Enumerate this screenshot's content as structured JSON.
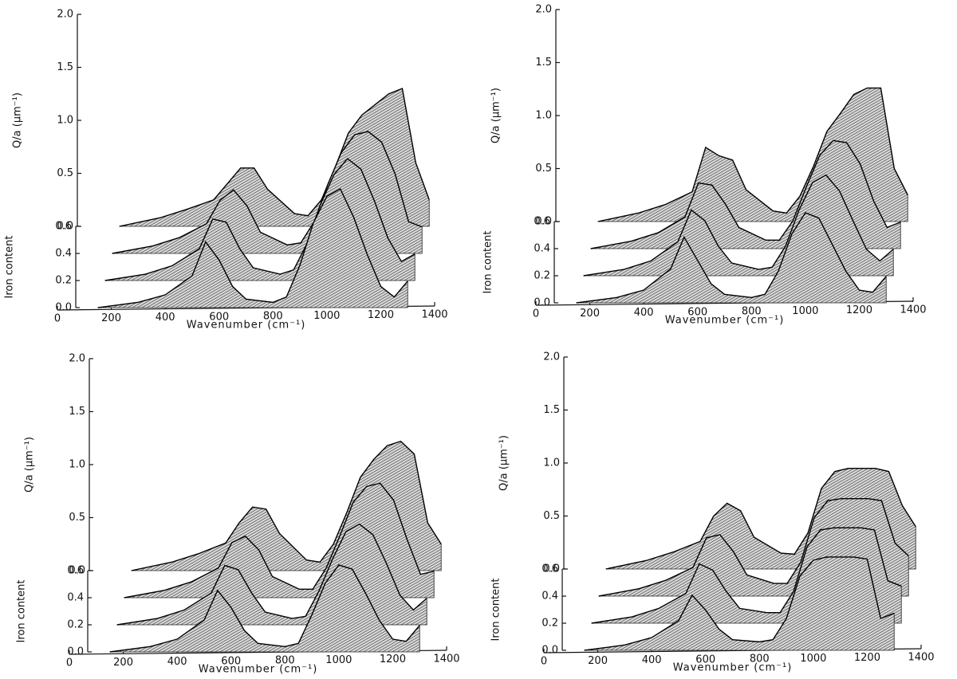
{
  "chart_data": [
    {
      "type": "surface",
      "xlabel": "Wavenumber (cm⁻¹)",
      "ylabel": "Q/a (μm⁻¹)",
      "zlabel": "Iron content",
      "x": [
        150,
        300,
        400,
        500,
        550,
        600,
        650,
        700,
        800,
        850,
        900,
        950,
        1000,
        1050,
        1100,
        1150,
        1200,
        1250,
        1300
      ],
      "series": [
        {
          "z": 0.0,
          "values": [
            0.0,
            0.05,
            0.12,
            0.3,
            0.62,
            0.45,
            0.2,
            0.08,
            0.05,
            0.1,
            0.4,
            0.8,
            1.05,
            1.12,
            0.85,
            0.5,
            0.2,
            0.1,
            0.25
          ]
        },
        {
          "z": 0.2,
          "values": [
            0.0,
            0.06,
            0.14,
            0.3,
            0.58,
            0.55,
            0.3,
            0.12,
            0.06,
            0.1,
            0.35,
            0.72,
            1.0,
            1.15,
            1.05,
            0.75,
            0.4,
            0.18,
            0.25
          ]
        },
        {
          "z": 0.4,
          "values": [
            0.0,
            0.07,
            0.15,
            0.28,
            0.5,
            0.6,
            0.45,
            0.2,
            0.08,
            0.1,
            0.3,
            0.65,
            0.95,
            1.12,
            1.15,
            1.05,
            0.75,
            0.3,
            0.25
          ]
        },
        {
          "z": 0.6,
          "values": [
            0.0,
            0.08,
            0.16,
            0.25,
            0.4,
            0.55,
            0.55,
            0.35,
            0.12,
            0.1,
            0.25,
            0.55,
            0.88,
            1.05,
            1.15,
            1.25,
            1.3,
            0.6,
            0.25
          ]
        }
      ],
      "xlim": [
        0,
        1400
      ],
      "xticks": [
        0,
        200,
        400,
        600,
        800,
        1000,
        1200,
        1400
      ],
      "ylim": [
        0,
        2
      ],
      "yticks": [
        {
          "value": 0,
          "label": "0.0"
        },
        {
          "value": 0.5,
          "label": "0.5"
        },
        {
          "value": 1,
          "label": "1.0"
        },
        {
          "value": 1.5,
          "label": "1.5"
        },
        {
          "value": 2,
          "label": "2.0"
        }
      ],
      "zlim": [
        0,
        0.6
      ],
      "zticks": [
        {
          "value": 0,
          "label": "0.0"
        },
        {
          "value": 0.2,
          "label": "0.2"
        },
        {
          "value": 0.4,
          "label": "0.4"
        },
        {
          "value": 0.6,
          "label": "0.6"
        }
      ]
    },
    {
      "type": "surface",
      "xlabel": "Wavenumber (cm⁻¹)",
      "ylabel": "Q/a (μm⁻¹)",
      "zlabel": "Iron content",
      "x": [
        150,
        300,
        400,
        500,
        550,
        600,
        650,
        700,
        800,
        850,
        900,
        950,
        1000,
        1050,
        1100,
        1150,
        1200,
        1250,
        1300
      ],
      "series": [
        {
          "z": 0.0,
          "values": [
            0.0,
            0.05,
            0.12,
            0.32,
            0.62,
            0.4,
            0.18,
            0.08,
            0.05,
            0.08,
            0.3,
            0.65,
            0.85,
            0.8,
            0.55,
            0.3,
            0.12,
            0.1,
            0.25
          ]
        },
        {
          "z": 0.2,
          "values": [
            0.0,
            0.06,
            0.14,
            0.32,
            0.62,
            0.52,
            0.28,
            0.12,
            0.06,
            0.08,
            0.28,
            0.62,
            0.88,
            0.95,
            0.8,
            0.52,
            0.25,
            0.14,
            0.25
          ]
        },
        {
          "z": 0.4,
          "values": [
            0.0,
            0.07,
            0.15,
            0.3,
            0.62,
            0.6,
            0.42,
            0.2,
            0.08,
            0.08,
            0.26,
            0.58,
            0.88,
            1.02,
            1.0,
            0.8,
            0.45,
            0.2,
            0.25
          ]
        },
        {
          "z": 0.6,
          "values": [
            0.0,
            0.08,
            0.16,
            0.28,
            0.7,
            0.62,
            0.58,
            0.3,
            0.1,
            0.08,
            0.24,
            0.52,
            0.85,
            1.02,
            1.2,
            1.26,
            1.26,
            0.5,
            0.25
          ]
        }
      ],
      "xlim": [
        0,
        1400
      ],
      "xticks": [
        0,
        200,
        400,
        600,
        800,
        1000,
        1200,
        1400
      ],
      "ylim": [
        0,
        2
      ],
      "yticks": [
        {
          "value": 0,
          "label": "0.0"
        },
        {
          "value": 0.5,
          "label": "0.5"
        },
        {
          "value": 1,
          "label": "1.0"
        },
        {
          "value": 1.5,
          "label": "1.5"
        },
        {
          "value": 2,
          "label": "2.0"
        }
      ],
      "zlim": [
        0,
        0.6
      ],
      "zticks": [
        {
          "value": 0,
          "label": "0.0"
        },
        {
          "value": 0.2,
          "label": "0.2"
        },
        {
          "value": 0.4,
          "label": "0.4"
        },
        {
          "value": 0.6,
          "label": "0.6"
        }
      ]
    },
    {
      "type": "surface",
      "xlabel": "Wavenumber (cm⁻¹)",
      "ylabel": "Q/a (μm⁻¹)",
      "zlabel": "Iron content",
      "x": [
        150,
        300,
        400,
        500,
        550,
        600,
        650,
        700,
        800,
        850,
        900,
        950,
        1000,
        1050,
        1100,
        1150,
        1200,
        1250,
        1300
      ],
      "series": [
        {
          "z": 0.0,
          "values": [
            0.0,
            0.05,
            0.12,
            0.3,
            0.58,
            0.42,
            0.2,
            0.08,
            0.05,
            0.08,
            0.35,
            0.65,
            0.82,
            0.78,
            0.55,
            0.3,
            0.12,
            0.1,
            0.25
          ]
        },
        {
          "z": 0.2,
          "values": [
            0.0,
            0.06,
            0.14,
            0.3,
            0.56,
            0.52,
            0.3,
            0.12,
            0.06,
            0.08,
            0.32,
            0.62,
            0.88,
            0.95,
            0.85,
            0.58,
            0.28,
            0.14,
            0.25
          ]
        },
        {
          "z": 0.4,
          "values": [
            0.0,
            0.07,
            0.15,
            0.28,
            0.52,
            0.58,
            0.45,
            0.2,
            0.08,
            0.08,
            0.28,
            0.58,
            0.9,
            1.05,
            1.08,
            0.92,
            0.55,
            0.22,
            0.25
          ]
        },
        {
          "z": 0.6,
          "values": [
            0.0,
            0.08,
            0.16,
            0.26,
            0.45,
            0.6,
            0.58,
            0.35,
            0.1,
            0.08,
            0.25,
            0.55,
            0.88,
            1.05,
            1.18,
            1.22,
            1.1,
            0.45,
            0.25
          ]
        }
      ],
      "xlim": [
        0,
        1400
      ],
      "xticks": [
        0,
        200,
        400,
        600,
        800,
        1000,
        1200,
        1400
      ],
      "ylim": [
        0,
        2
      ],
      "yticks": [
        {
          "value": 0,
          "label": "0.0"
        },
        {
          "value": 0.5,
          "label": "0.5"
        },
        {
          "value": 1,
          "label": "1.0"
        },
        {
          "value": 1.5,
          "label": "1.5"
        },
        {
          "value": 2,
          "label": "2.0"
        }
      ],
      "zlim": [
        0,
        0.6
      ],
      "zticks": [
        {
          "value": 0,
          "label": "0.0"
        },
        {
          "value": 0.2,
          "label": "0.2"
        },
        {
          "value": 0.4,
          "label": "0.4"
        },
        {
          "value": 0.6,
          "label": "0.6"
        }
      ]
    },
    {
      "type": "surface",
      "xlabel": "Wavenumber (cm⁻¹)",
      "ylabel": "Q/a (μm⁻¹)",
      "zlabel": "Iron content",
      "x": [
        150,
        300,
        400,
        500,
        550,
        600,
        650,
        700,
        800,
        850,
        900,
        950,
        1000,
        1050,
        1100,
        1150,
        1200,
        1250,
        1300
      ],
      "series": [
        {
          "z": 0.0,
          "values": [
            0.0,
            0.05,
            0.12,
            0.28,
            0.52,
            0.38,
            0.2,
            0.1,
            0.08,
            0.1,
            0.3,
            0.7,
            0.85,
            0.88,
            0.88,
            0.88,
            0.86,
            0.3,
            0.35
          ]
        },
        {
          "z": 0.2,
          "values": [
            0.0,
            0.06,
            0.14,
            0.28,
            0.56,
            0.5,
            0.3,
            0.14,
            0.1,
            0.1,
            0.3,
            0.72,
            0.88,
            0.9,
            0.9,
            0.9,
            0.88,
            0.4,
            0.35
          ]
        },
        {
          "z": 0.4,
          "values": [
            0.0,
            0.07,
            0.15,
            0.27,
            0.55,
            0.58,
            0.42,
            0.2,
            0.12,
            0.12,
            0.32,
            0.74,
            0.9,
            0.92,
            0.92,
            0.92,
            0.9,
            0.5,
            0.38
          ]
        },
        {
          "z": 0.6,
          "values": [
            0.0,
            0.08,
            0.16,
            0.26,
            0.5,
            0.62,
            0.55,
            0.3,
            0.15,
            0.14,
            0.34,
            0.76,
            0.92,
            0.95,
            0.95,
            0.95,
            0.92,
            0.6,
            0.4
          ]
        }
      ],
      "xlim": [
        0,
        1400
      ],
      "xticks": [
        0,
        200,
        400,
        600,
        800,
        1000,
        1200,
        1400
      ],
      "ylim": [
        0,
        2
      ],
      "yticks": [
        {
          "value": 0,
          "label": "0.0"
        },
        {
          "value": 0.5,
          "label": "0.5"
        },
        {
          "value": 1,
          "label": "1.0"
        },
        {
          "value": 1.5,
          "label": "1.5"
        },
        {
          "value": 2,
          "label": "2.0"
        }
      ],
      "zlim": [
        0,
        0.6
      ],
      "zticks": [
        {
          "value": 0,
          "label": "0.0"
        },
        {
          "value": 0.2,
          "label": "0.2"
        },
        {
          "value": 0.4,
          "label": "0.4"
        },
        {
          "value": 0.6,
          "label": "0.6"
        }
      ]
    }
  ]
}
